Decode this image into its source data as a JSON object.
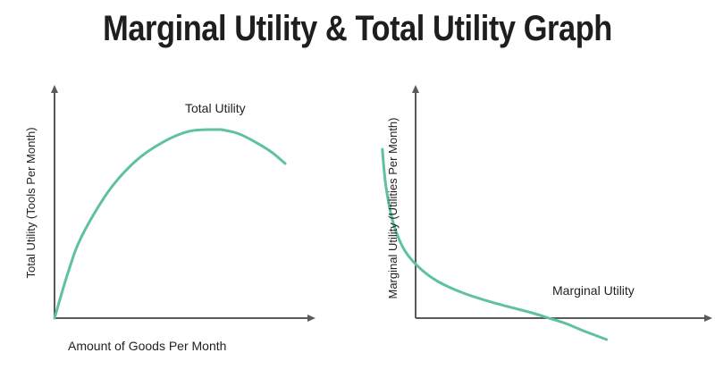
{
  "page": {
    "title": "Marginal Utility  & Total Utility Graph"
  },
  "colors": {
    "axis": "#5a5a5a",
    "curve": "#5fc1a1",
    "text": "#222222",
    "title": "#1e1e1e"
  },
  "chart_data": [
    {
      "type": "line",
      "title": "",
      "xlabel": "Amount of Goods Per Month",
      "ylabel": "Total Utility (Tools Per Month)",
      "xlim": [
        0,
        100
      ],
      "ylim": [
        0,
        100
      ],
      "grid": false,
      "series": [
        {
          "name": "Total Utility",
          "x": [
            0,
            5,
            10,
            20,
            30,
            40,
            50,
            60,
            64,
            70,
            80,
            86
          ],
          "y": [
            0,
            24,
            43,
            67,
            83,
            93,
            99,
            100,
            99.5,
            97,
            89,
            82
          ]
        }
      ]
    },
    {
      "type": "line",
      "title": "",
      "xlabel": "",
      "ylabel": "Marginal Utility (Utilities Per Month)",
      "xlim": [
        0,
        100
      ],
      "ylim": [
        -15,
        100
      ],
      "grid": false,
      "series": [
        {
          "name": "Marginal Utility",
          "x": [
            6,
            7,
            9,
            12,
            16,
            22,
            30,
            40,
            50,
            55,
            60,
            65,
            72
          ],
          "y": [
            95,
            75,
            55,
            40,
            30,
            21,
            14,
            8,
            3,
            0,
            -3,
            -7,
            -12
          ]
        }
      ]
    }
  ]
}
